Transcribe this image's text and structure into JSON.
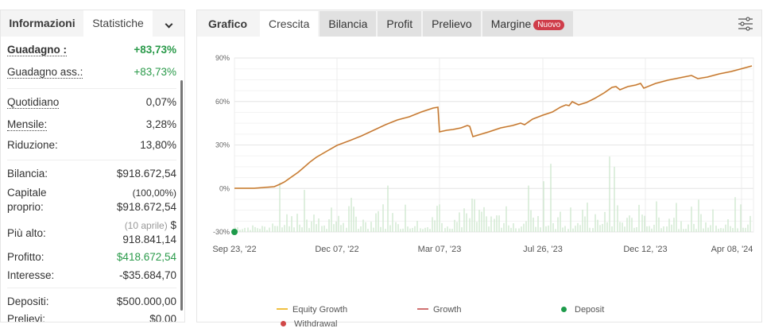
{
  "left_panel": {
    "tabs": [
      {
        "label": "Informazioni",
        "active": false
      },
      {
        "label": "Statistiche",
        "active": true
      }
    ],
    "more_icon": "chevron-down-icon",
    "stats": {
      "gain": {
        "label": "Guadagno :",
        "value": "+83,73%"
      },
      "abs_gain": {
        "label": "Guadagno ass.:",
        "value": "+83,73%"
      },
      "daily": {
        "label": "Quotidiano",
        "value": "0,07%"
      },
      "monthly": {
        "label": "Mensile:",
        "value": "3,28%"
      },
      "drawdown": {
        "label": "Riduzione:",
        "value": "13,80%"
      },
      "balance": {
        "label": "Bilancia:",
        "value": "$918.672,54"
      },
      "equity": {
        "label_line1": "Capitale",
        "label_line2": "proprio:",
        "percent": "(100,00%)",
        "value": "$918.672,54"
      },
      "highest": {
        "label": "Più alto:",
        "date": "(10 aprile)",
        "value_line1": "$",
        "value_line2": "918.841,14"
      },
      "profit": {
        "label": "Profitto:",
        "value": "$418.672,54"
      },
      "interest": {
        "label": "Interesse:",
        "value": "-$35.684,70"
      },
      "deposits": {
        "label": "Depositi:",
        "value": "$500.000,00"
      },
      "withdrawals": {
        "label": "Prelievi:",
        "value": "$0.00"
      }
    }
  },
  "right_panel": {
    "tabs": [
      {
        "label": "Grafico"
      },
      {
        "label": "Crescita",
        "active": true
      },
      {
        "label": "Bilancia"
      },
      {
        "label": "Profit"
      },
      {
        "label": "Prelievo"
      },
      {
        "label": "Margine",
        "badge": "Nuovo"
      }
    ],
    "settings_icon": "sliders-icon"
  },
  "colors": {
    "growth": "#c0703a",
    "equity_growth": "#f0c040",
    "bars": "#c8e6c9",
    "deposit": "#1e9b4b",
    "withdrawal": "#d04848",
    "badge": "#cf3d4a",
    "positive": "#2a9a4a"
  },
  "chart_data": {
    "type": "line",
    "title": "",
    "xlabel": "",
    "ylabel": "",
    "ylim": [
      -30,
      90
    ],
    "y_ticks": [
      "90%",
      "60%",
      "30%",
      "0%",
      "-30%"
    ],
    "x_ticks": [
      "Sep 23, '22",
      "Dec 07, '22",
      "Mar 07, '23",
      "Jul 26, '23",
      "Dec 12, '23",
      "Apr 08, '24"
    ],
    "grid": true,
    "legend": [
      "Equity Growth",
      "Growth",
      "Deposit",
      "Withdrawal"
    ],
    "legend_position": "bottom",
    "series": [
      {
        "name": "Growth",
        "x": [
          "Sep 23, '22",
          "Oct 20, '22",
          "Nov 01, '22",
          "Nov 15, '22",
          "Dec 07, '22",
          "Jan 05, '23",
          "Feb 01, '23",
          "Mar 06, '23",
          "Mar 07, '23",
          "Apr 01, '23",
          "Apr 10, '23",
          "May 15, '23",
          "Jul 26, '23",
          "Sep 15, '23",
          "Oct 20, '23",
          "Oct 25, '23",
          "Dec 12, '23",
          "Feb 10, '24",
          "Apr 08, '24",
          "Apr 10, '24"
        ],
        "values": [
          0,
          1,
          2,
          12,
          29,
          38,
          46,
          56,
          39,
          42,
          36,
          42,
          51,
          60,
          65,
          60,
          68,
          76,
          81,
          84
        ]
      },
      {
        "name": "Equity Growth",
        "values": [
          0,
          1,
          2,
          12,
          29,
          38,
          46,
          56,
          39,
          42,
          36,
          42,
          51,
          60,
          65,
          60,
          68,
          76,
          81,
          84
        ]
      },
      {
        "name": "Deposit",
        "x": [
          "Sep 23, '22"
        ],
        "values": [
          -30
        ]
      }
    ],
    "bars_note": "Light-green vertical daily bars along the bottom (activity), heights mostly between -30% and -10% with spikes up to ~+70%."
  }
}
